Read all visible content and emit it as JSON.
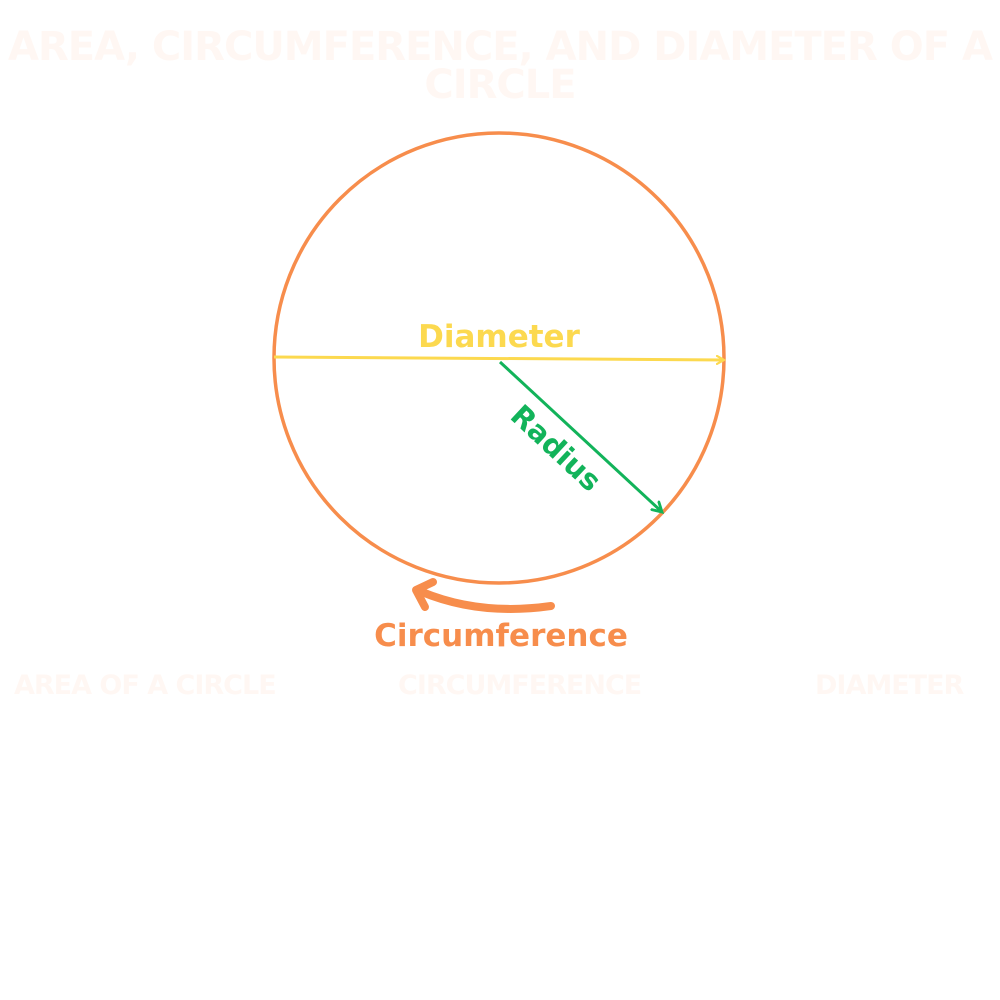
{
  "title": "AREA, CIRCUMFERENCE, AND DIAMETER OF A CIRCLE",
  "diagram": {
    "diameter_label": "Diameter",
    "radius_label": "Radius",
    "circumference_label": "Circumference"
  },
  "sections": [
    {
      "label": "AREA OF A CIRCLE"
    },
    {
      "label": "CIRCUMFERENCE"
    },
    {
      "label": "DIAMETER"
    }
  ],
  "colors": {
    "circle": "#f78d4c",
    "diameter": "#fcd94f",
    "radius": "#12b35a",
    "circumference": "#f78d4c",
    "faint_text": "#fff7f3"
  }
}
